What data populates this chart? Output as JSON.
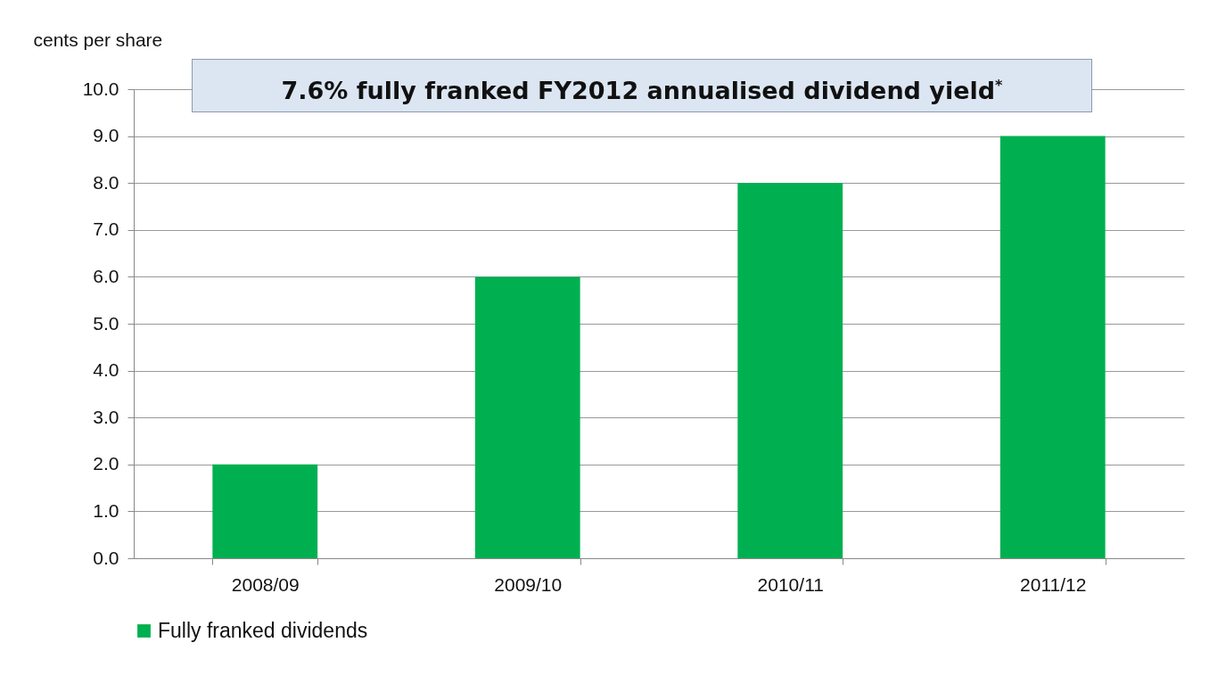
{
  "chart_data": {
    "type": "bar",
    "title": "7.6% fully franked FY2012 annualised dividend yield$^{*}$",
    "ylabel": "cents per share",
    "categories": [
      "2008/09",
      "2009/10",
      "2010/11",
      "2011/12"
    ],
    "series": [
      {
        "name": "Fully franked dividends",
        "color": "#00b050",
        "values": [
          2,
          6,
          8,
          9
        ]
      }
    ],
    "ylim": [
      0,
      10
    ],
    "yticks": [
      {
        "value": 0,
        "label": "0.0"
      },
      {
        "value": 1,
        "label": "1.0"
      },
      {
        "value": 2,
        "label": "2.0"
      },
      {
        "value": 3,
        "label": "3.0"
      },
      {
        "value": 4,
        "label": "4.0"
      },
      {
        "value": 5,
        "label": "5.0"
      },
      {
        "value": 6,
        "label": "6.0"
      },
      {
        "value": 7,
        "label": "7.0"
      },
      {
        "value": 8,
        "label": "8.0"
      },
      {
        "value": 9,
        "label": "9.0"
      },
      {
        "value": 10,
        "label": "10.0"
      }
    ],
    "grid": "y",
    "legend": "bottom"
  }
}
